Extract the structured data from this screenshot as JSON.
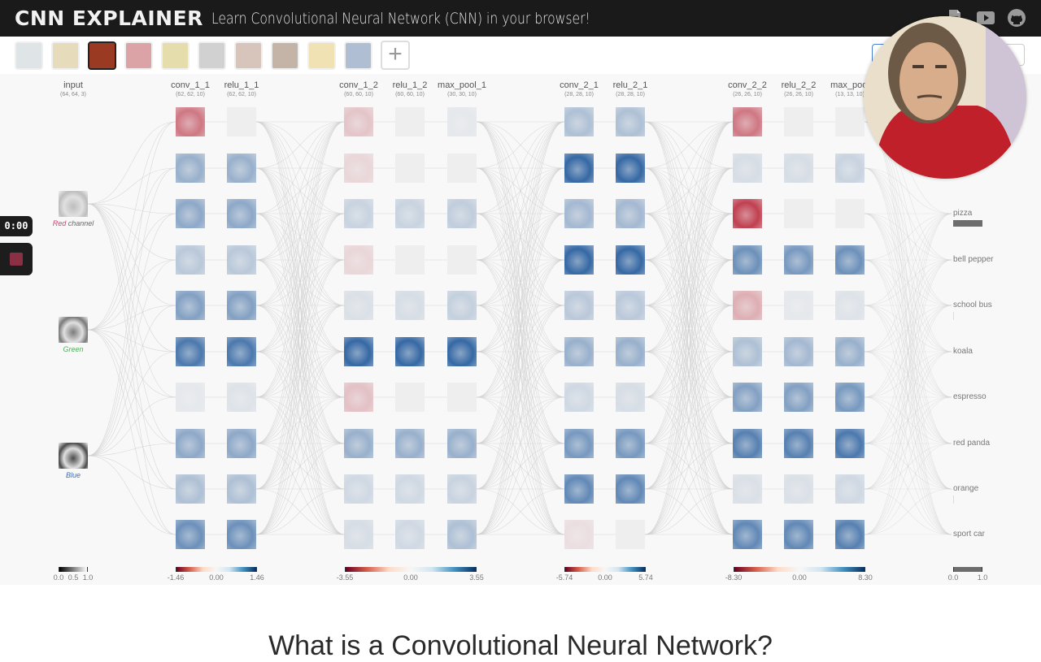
{
  "header": {
    "logo": "CNN EXPLAINER",
    "tagline": "Learn Convolutional Neural Network (CNN) in your browser!",
    "icons": [
      "paper-icon",
      "video-icon",
      "github-icon"
    ]
  },
  "toolbar": {
    "images": [
      {
        "name": "boat",
        "color": "#b9c6cc",
        "selected": false
      },
      {
        "name": "ladybug",
        "color": "#c9b06a",
        "selected": false
      },
      {
        "name": "pizza",
        "color": "#9b3a22",
        "selected": true
      },
      {
        "name": "bell-pepper",
        "color": "#b3353c",
        "selected": false
      },
      {
        "name": "school-bus",
        "color": "#c9b54a",
        "selected": false
      },
      {
        "name": "koala",
        "color": "#9a9a9a",
        "selected": false
      },
      {
        "name": "espresso",
        "color": "#a8806a",
        "selected": false
      },
      {
        "name": "red-panda",
        "color": "#7c5a3e",
        "selected": false
      },
      {
        "name": "orange",
        "color": "#e2c15a",
        "selected": false
      },
      {
        "name": "sport-car",
        "color": "#52709e",
        "selected": false
      }
    ],
    "add_label": "+"
  },
  "recorder": {
    "time": "0:00",
    "record_color": "#8b2f45"
  },
  "input_layer": {
    "title": "input",
    "dim": "(64, 64, 3)",
    "channels": [
      {
        "label_accent": "Red",
        "label_rest": " channel",
        "accent_color": "#c8436a"
      },
      {
        "label_accent": "Green",
        "label_rest": "",
        "accent_color": "#4fae5a"
      },
      {
        "label_accent": "Blue",
        "label_rest": "",
        "accent_color": "#3e6db3"
      }
    ]
  },
  "layers": [
    {
      "title": "conv_1_1",
      "dim": "(62, 62, 10)"
    },
    {
      "title": "relu_1_1",
      "dim": "(62, 62, 10)"
    },
    {
      "title": "conv_1_2",
      "dim": "(60, 60, 10)"
    },
    {
      "title": "relu_1_2",
      "dim": "(60, 60, 10)"
    },
    {
      "title": "max_pool_1",
      "dim": "(30, 30, 10)"
    },
    {
      "title": "conv_2_1",
      "dim": "(28, 28, 10)"
    },
    {
      "title": "relu_2_1",
      "dim": "(28, 28, 10)"
    },
    {
      "title": "conv_2_2",
      "dim": "(26, 26, 10)"
    },
    {
      "title": "relu_2_2",
      "dim": "(26, 26, 10)"
    },
    {
      "title": "max_pool",
      "dim": "(13, 13, 10)"
    }
  ],
  "activations": [
    [
      -0.55,
      0.4,
      0.45,
      0.25,
      0.5,
      0.75,
      0.05,
      0.45,
      0.3,
      0.6
    ],
    [
      0,
      0.4,
      0.45,
      0.25,
      0.5,
      0.75,
      0.08,
      0.45,
      0.3,
      0.6
    ],
    [
      -0.2,
      -0.12,
      0.18,
      -0.12,
      0.1,
      0.85,
      -0.22,
      0.4,
      0.15,
      0.12
    ],
    [
      0,
      0,
      0.18,
      0,
      0.12,
      0.85,
      0,
      0.4,
      0.15,
      0.15
    ],
    [
      0.05,
      0,
      0.22,
      0,
      0.2,
      0.85,
      0,
      0.4,
      0.18,
      0.3
    ],
    [
      0.3,
      0.85,
      0.35,
      0.85,
      0.25,
      0.4,
      0.15,
      0.55,
      0.65,
      -0.08
    ],
    [
      0.3,
      0.85,
      0.35,
      0.85,
      0.25,
      0.4,
      0.12,
      0.55,
      0.65,
      0
    ],
    [
      -0.55,
      0.12,
      -0.8,
      0.6,
      -0.3,
      0.3,
      0.5,
      0.7,
      0.1,
      0.65
    ],
    [
      0,
      0.12,
      0,
      0.55,
      0.05,
      0.35,
      0.5,
      0.7,
      0.1,
      0.65
    ],
    [
      0,
      0.18,
      0,
      0.6,
      0.08,
      0.4,
      0.55,
      0.75,
      0.15,
      0.7
    ]
  ],
  "output": {
    "classes": [
      "pizza",
      "bell pepper",
      "school bus",
      "koala",
      "espresso",
      "red panda",
      "orange",
      "sport car"
    ],
    "probabilities": [
      1.0,
      0.0,
      0.01,
      0.0,
      0.0,
      0.0,
      0.01,
      0.0
    ]
  },
  "legends": [
    {
      "name": "input",
      "ticks": [
        "0.0",
        "0.5",
        "1.0"
      ],
      "type": "gray"
    },
    {
      "name": "block1-1",
      "ticks": [
        "-1.46",
        "0.00",
        "1.46"
      ],
      "type": "diverging"
    },
    {
      "name": "block1-2",
      "ticks": [
        "-3.55",
        "0.00",
        "3.55"
      ],
      "type": "diverging"
    },
    {
      "name": "block2-1",
      "ticks": [
        "-5.74",
        "0.00",
        "5.74"
      ],
      "type": "diverging"
    },
    {
      "name": "block2-2",
      "ticks": [
        "-8.30",
        "0.00",
        "8.30"
      ],
      "type": "diverging"
    },
    {
      "name": "output",
      "ticks": [
        "0.0",
        "1.0"
      ],
      "type": "output"
    }
  ],
  "article": {
    "heading": "What is a Convolutional Neural Network?"
  }
}
